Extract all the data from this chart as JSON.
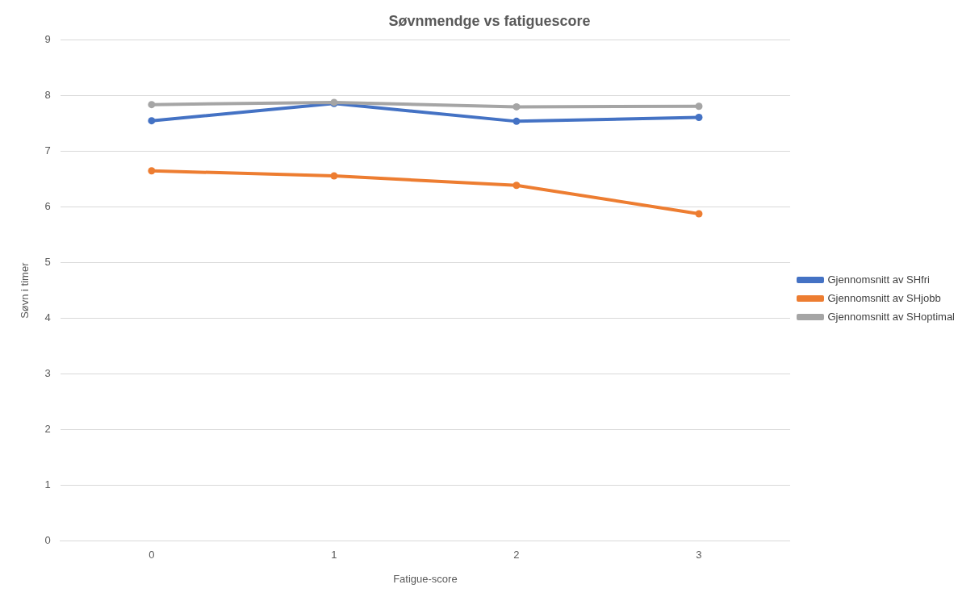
{
  "chart_data": {
    "type": "line",
    "title": "Søvnmendge vs fatiguescore",
    "xlabel": "Fatigue-score",
    "ylabel": "Søvn i timer",
    "categories": [
      "0",
      "1",
      "2",
      "3"
    ],
    "series": [
      {
        "name": "Gjennomsnitt av SHfri",
        "color": "#4472c4",
        "values": [
          7.55,
          7.86,
          7.54,
          7.61
        ]
      },
      {
        "name": "Gjennomsnitt av SHjobb",
        "color": "#ed7d31",
        "values": [
          6.65,
          6.56,
          6.39,
          5.88
        ]
      },
      {
        "name": "Gjennomsnitt av SHoptimal",
        "color": "#a5a5a5",
        "values": [
          7.84,
          7.88,
          7.8,
          7.81
        ]
      }
    ],
    "ylim": [
      0,
      9
    ],
    "yticks": [
      0,
      1,
      2,
      3,
      4,
      5,
      6,
      7,
      8,
      9
    ],
    "grid": "y",
    "legend": "right",
    "marker": "circle",
    "line_style": "solid"
  }
}
